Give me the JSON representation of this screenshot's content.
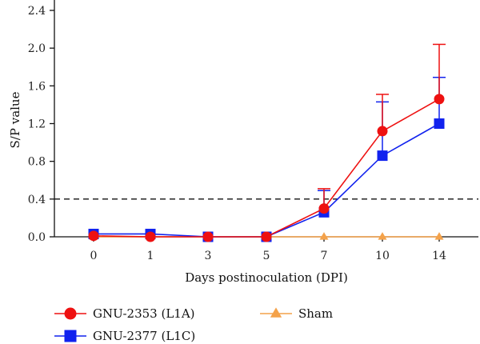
{
  "chart_data": {
    "type": "line",
    "title": "",
    "xlabel": "Days postinoculation (DPI)",
    "ylabel": "S/P value",
    "categories": [
      "0",
      "1",
      "3",
      "5",
      "7",
      "10",
      "14"
    ],
    "ylim": [
      0,
      2.4
    ],
    "yticks": [
      "0.0",
      "0.4",
      "0.8",
      "1.2",
      "1.6",
      "2.0",
      "2.4"
    ],
    "threshold": 0.4,
    "legend_position": "bottom",
    "grid": false,
    "series": [
      {
        "name": "GNU-2353 (L1A)",
        "color": "#ee1111",
        "marker": "circle",
        "values": [
          0.01,
          0.0,
          0.0,
          0.0,
          0.3,
          1.12,
          1.46
        ],
        "errors": [
          0.0,
          0.0,
          0.0,
          0.0,
          0.21,
          0.39,
          0.58
        ]
      },
      {
        "name": "GNU-2377 (L1C)",
        "color": "#1122ee",
        "marker": "square",
        "values": [
          0.03,
          0.03,
          0.0,
          0.0,
          0.26,
          0.86,
          1.2
        ],
        "errors": [
          0.0,
          0.0,
          0.0,
          0.0,
          0.23,
          0.57,
          0.49
        ]
      },
      {
        "name": "Sham",
        "color": "#f4a24a",
        "marker": "triangle",
        "values": [
          0.0,
          0.0,
          0.0,
          0.0,
          0.0,
          0.0,
          0.0
        ],
        "errors": [
          0,
          0,
          0,
          0,
          0,
          0,
          0
        ]
      }
    ]
  }
}
